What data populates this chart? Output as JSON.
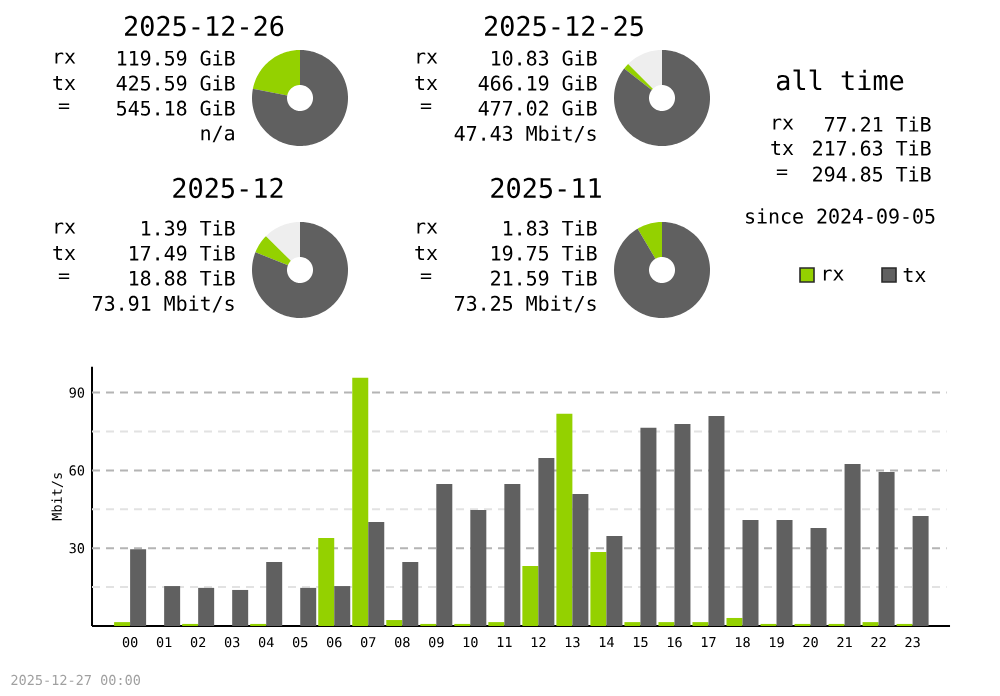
{
  "chart_data": [
    {
      "type": "donut",
      "title": "2025-12-26",
      "categories": [
        null,
        null
      ],
      "values": [
        21.94,
        78.06
      ],
      "colors": [
        "#94d100",
        "#606060"
      ],
      "annotations": [
        "rx",
        "tx",
        "=",
        "119.59 GiB",
        "425.59 GiB",
        "545.18 GiB",
        "n/a"
      ]
    },
    {
      "type": "donut",
      "title": "2025-12-25",
      "categories": [
        null,
        null,
        null
      ],
      "values": [
        12.5,
        1.99,
        85.51
      ],
      "colors": [
        "#eeeeee",
        "#94d100",
        "#606060"
      ],
      "annotations": [
        "rx",
        "tx",
        "=",
        "10.83 GiB",
        "466.19 GiB",
        "477.02 GiB",
        "47.43 Mbit/s"
      ]
    },
    {
      "type": "other",
      "title": "all time",
      "annotations": [
        "rx",
        "77.21 TiB",
        "tx",
        "217.63 TiB",
        "=",
        "294.85 TiB",
        "since 2024-09-05"
      ]
    },
    {
      "type": "donut",
      "title": "2025-12",
      "categories": [
        null,
        null,
        null
      ],
      "values": [
        12.55,
        6.44,
        81.01
      ],
      "colors": [
        "#eeeeee",
        "#94d100",
        "#606060"
      ],
      "annotations": [
        "rx",
        "tx",
        "=",
        "1.39 TiB",
        "17.49 TiB",
        "18.88 TiB",
        "73.91 Mbit/s"
      ]
    },
    {
      "type": "donut",
      "title": "2025-11",
      "categories": [
        null,
        null
      ],
      "values": [
        8.48,
        91.52
      ],
      "colors": [
        "#94d100",
        "#606060"
      ],
      "annotations": [
        "rx",
        "tx",
        "=",
        "1.83 TiB",
        "19.75 TiB",
        "21.59 TiB",
        "73.25 Mbit/s"
      ]
    },
    {
      "type": "bar",
      "ylabel": "Mbit/s",
      "categories": [
        "00",
        "01",
        "02",
        "03",
        "04",
        "05",
        "06",
        "07",
        "08",
        "09",
        "10",
        "11",
        "12",
        "13",
        "14",
        "15",
        "16",
        "17",
        "18",
        "19",
        "20",
        "21",
        "22",
        "23"
      ],
      "series": [
        {
          "name": "rx",
          "color": "#94d100",
          "values": [
            1.5,
            0,
            0.8,
            0,
            0.8,
            0,
            33.9,
            95.7,
            2.3,
            0.8,
            0.8,
            1.5,
            23.1,
            81.8,
            28.5,
            1.5,
            1.5,
            1.5,
            3.1,
            0.8,
            0.8,
            0.8,
            1.5,
            0.8
          ]
        },
        {
          "name": "tx",
          "color": "#606060",
          "values": [
            29.6,
            15.4,
            14.7,
            13.9,
            24.7,
            14.7,
            15.4,
            40.1,
            24.7,
            54.8,
            44.7,
            54.8,
            64.8,
            50.9,
            34.7,
            76.4,
            77.9,
            81.0,
            40.9,
            40.9,
            37.8,
            62.5,
            59.4,
            42.4
          ]
        }
      ],
      "ylim": [
        0,
        100
      ],
      "yticks": [
        {
          "value": 15,
          "label": null
        },
        30,
        {
          "value": 45,
          "label": null
        },
        60,
        {
          "value": 75,
          "label": null
        },
        90
      ],
      "grid": "y",
      "legend": "top right",
      "annotations": [
        "2025-12-27 00:00"
      ]
    }
  ]
}
